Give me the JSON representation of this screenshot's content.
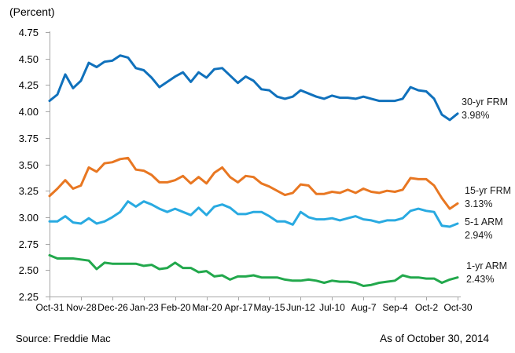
{
  "footer": {
    "source": "Source: Freddie Mac",
    "as_of": "As of October 30, 2014"
  },
  "chart_data": {
    "type": "line",
    "ylabel": "(Percent)",
    "x_tick_labels": [
      "Oct-31",
      "Nov-28",
      "Dec-26",
      "Jan-23",
      "Feb-20",
      "Mar-20",
      "Apr-17",
      "May-15",
      "Jun-12",
      "Jul-10",
      "Aug-7",
      "Sep-4",
      "Oct-2",
      "Oct-30"
    ],
    "points_per_tick": 4,
    "ylim": [
      2.25,
      4.75
    ],
    "y_tick_step": 0.25,
    "grid": false,
    "legend_position": "end-of-line-annotations",
    "axis_color": "#a6a6a6",
    "series": [
      {
        "name": "30-yr FRM",
        "end_label": "3.98%",
        "color": "#1071bc",
        "values": [
          4.1,
          4.16,
          4.35,
          4.22,
          4.29,
          4.46,
          4.42,
          4.47,
          4.48,
          4.53,
          4.51,
          4.41,
          4.39,
          4.32,
          4.23,
          4.28,
          4.33,
          4.37,
          4.28,
          4.37,
          4.32,
          4.4,
          4.41,
          4.34,
          4.27,
          4.33,
          4.29,
          4.21,
          4.2,
          4.14,
          4.12,
          4.14,
          4.2,
          4.17,
          4.14,
          4.12,
          4.15,
          4.13,
          4.13,
          4.12,
          4.14,
          4.12,
          4.1,
          4.1,
          4.1,
          4.12,
          4.23,
          4.2,
          4.19,
          4.12,
          3.97,
          3.92,
          3.98
        ]
      },
      {
        "name": "15-yr FRM",
        "end_label": "3.13%",
        "color": "#e87722",
        "values": [
          3.2,
          3.27,
          3.35,
          3.27,
          3.3,
          3.47,
          3.43,
          3.51,
          3.52,
          3.55,
          3.56,
          3.45,
          3.44,
          3.4,
          3.33,
          3.33,
          3.35,
          3.39,
          3.32,
          3.38,
          3.32,
          3.42,
          3.47,
          3.38,
          3.33,
          3.39,
          3.38,
          3.32,
          3.29,
          3.25,
          3.21,
          3.23,
          3.31,
          3.3,
          3.22,
          3.22,
          3.24,
          3.23,
          3.26,
          3.23,
          3.27,
          3.24,
          3.23,
          3.25,
          3.24,
          3.26,
          3.37,
          3.36,
          3.36,
          3.3,
          3.18,
          3.08,
          3.13
        ]
      },
      {
        "name": "5-1 ARM",
        "end_label": "2.94%",
        "color": "#29aae1",
        "values": [
          2.96,
          2.96,
          3.01,
          2.95,
          2.94,
          2.99,
          2.94,
          2.96,
          3.0,
          3.05,
          3.15,
          3.1,
          3.15,
          3.12,
          3.08,
          3.05,
          3.08,
          3.05,
          3.02,
          3.09,
          3.02,
          3.1,
          3.12,
          3.09,
          3.03,
          3.03,
          3.05,
          3.05,
          3.01,
          2.96,
          2.96,
          2.93,
          3.05,
          3.0,
          2.98,
          2.98,
          2.99,
          2.97,
          2.99,
          3.01,
          2.98,
          2.97,
          2.95,
          2.97,
          2.97,
          2.99,
          3.06,
          3.08,
          3.06,
          3.05,
          2.92,
          2.91,
          2.94
        ]
      },
      {
        "name": "1-yr ARM",
        "end_label": "2.43%",
        "color": "#22a84c",
        "values": [
          2.64,
          2.61,
          2.61,
          2.61,
          2.6,
          2.59,
          2.51,
          2.57,
          2.56,
          2.56,
          2.56,
          2.56,
          2.54,
          2.55,
          2.51,
          2.52,
          2.57,
          2.52,
          2.52,
          2.48,
          2.49,
          2.44,
          2.45,
          2.41,
          2.44,
          2.44,
          2.45,
          2.43,
          2.43,
          2.43,
          2.41,
          2.4,
          2.4,
          2.41,
          2.4,
          2.38,
          2.4,
          2.39,
          2.39,
          2.38,
          2.35,
          2.36,
          2.38,
          2.39,
          2.4,
          2.45,
          2.43,
          2.43,
          2.42,
          2.42,
          2.38,
          2.41,
          2.43
        ]
      }
    ]
  }
}
